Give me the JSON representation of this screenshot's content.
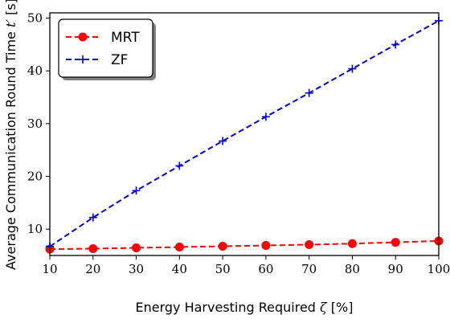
{
  "chart_data": {
    "type": "line",
    "x": [
      10,
      20,
      30,
      40,
      50,
      60,
      70,
      80,
      90,
      100
    ],
    "xlim": [
      10,
      100
    ],
    "ylim": [
      5,
      51
    ],
    "xticks": [
      10,
      20,
      30,
      40,
      50,
      60,
      70,
      80,
      90,
      100
    ],
    "yticks": [
      10,
      20,
      30,
      40,
      50
    ],
    "xlabel": {
      "prefix": "Energy Harvesting Required ",
      "symbol": "ζ",
      "suffix": " [%]"
    },
    "ylabel": {
      "prefix": "Average Communication Round Time ",
      "symbol": "t′",
      "suffix": " [s]"
    },
    "grid": false,
    "legend_position": "top-left",
    "series": [
      {
        "name": "MRT",
        "color": "#ff0000",
        "marker": "circle",
        "line_style": "dashed",
        "values": [
          6.2,
          6.3,
          6.45,
          6.6,
          6.75,
          6.9,
          7.05,
          7.25,
          7.5,
          7.75
        ]
      },
      {
        "name": "ZF",
        "color": "#0000cc",
        "marker": "plus",
        "line_style": "dashed",
        "values": [
          6.7,
          12.2,
          17.3,
          22.0,
          26.7,
          31.3,
          35.8,
          40.4,
          45.0,
          49.5
        ]
      }
    ]
  }
}
